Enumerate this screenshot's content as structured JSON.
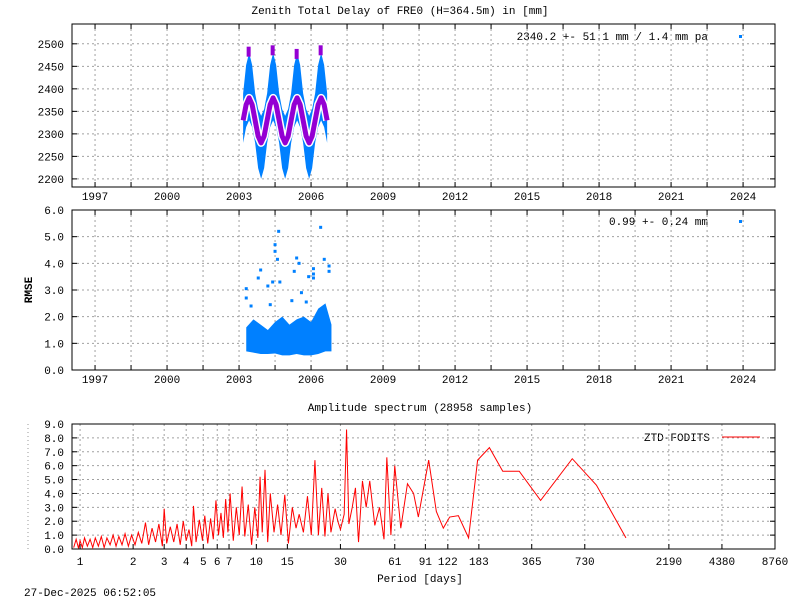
{
  "chart_data": [
    {
      "type": "scatter",
      "title": "Zenith Total Delay of FRE0 (H=364.5m) in [mm]",
      "legend": {
        "label": "2340.2 +-  51.1 mm /  1.4 mm pa",
        "placement": "top-right",
        "color": "#0080ff"
      },
      "xlim": [
        1996.04,
        2025.33
      ],
      "ylim": [
        2182,
        2544
      ],
      "xticks": [
        "1997",
        "2000",
        "2003",
        "2006",
        "2009",
        "2012",
        "2015",
        "2018",
        "2021",
        "2024"
      ],
      "yticks": [
        "2200",
        "2250",
        "2300",
        "2350",
        "2400",
        "2450",
        "2500"
      ],
      "grid": true,
      "colors": {
        "data": "#0080ff",
        "model": "#9400d3"
      },
      "data_envelope": {
        "t": [
          2003.17,
          2003.295,
          2003.42,
          2003.545,
          2003.67,
          2003.795,
          2003.92,
          2004.045,
          2004.17,
          2004.295,
          2004.42,
          2004.545,
          2004.67,
          2004.795,
          2004.92,
          2005.045,
          2005.17,
          2005.295,
          2005.42,
          2005.545,
          2005.67,
          2005.795,
          2005.92,
          2006.045,
          2006.17,
          2006.295,
          2006.42,
          2006.545,
          2006.67
        ],
        "low": [
          2280,
          2315,
          2330,
          2315,
          2280,
          2224,
          2200,
          2224,
          2280,
          2315,
          2330,
          2315,
          2280,
          2224,
          2200,
          2224,
          2280,
          2315,
          2330,
          2315,
          2280,
          2224,
          2200,
          2224,
          2280,
          2315,
          2330,
          2315,
          2280
        ],
        "high": [
          2390,
          2453,
          2480,
          2453,
          2390,
          2355,
          2340,
          2355,
          2390,
          2453,
          2480,
          2453,
          2390,
          2355,
          2340,
          2355,
          2390,
          2453,
          2480,
          2453,
          2390,
          2355,
          2340,
          2355,
          2390,
          2453,
          2480,
          2453,
          2390
        ]
      },
      "model": [
        2330,
        2365,
        2380,
        2365,
        2330,
        2295,
        2280,
        2295,
        2330,
        2365,
        2380,
        2365,
        2330,
        2295,
        2280,
        2295,
        2330,
        2365,
        2380,
        2365,
        2330,
        2295,
        2280,
        2295,
        2330,
        2365,
        2380,
        2365,
        2330
      ],
      "model_outliers": [
        [
          2003.4,
          2487
        ],
        [
          2004.4,
          2490
        ],
        [
          2005.4,
          2482
        ],
        [
          2006.4,
          2490
        ]
      ]
    },
    {
      "type": "scatter",
      "ylabel": "RMSE",
      "legend": {
        "label": "0.99 +-  0.24 mm",
        "placement": "top-right",
        "color": "#0080ff"
      },
      "xlim": [
        1996.04,
        2025.33
      ],
      "ylim": [
        0,
        6
      ],
      "xticks": [
        "1997",
        "2000",
        "2003",
        "2006",
        "2009",
        "2012",
        "2015",
        "2018",
        "2021",
        "2024"
      ],
      "yticks": [
        "0.0",
        "1.0",
        "2.0",
        "3.0",
        "4.0",
        "5.0",
        "6.0"
      ],
      "grid": true,
      "data_envelope": {
        "t": [
          2003.3,
          2003.6,
          2003.9,
          2004.2,
          2004.5,
          2004.8,
          2005.1,
          2005.4,
          2005.7,
          2006.0,
          2006.3,
          2006.6,
          2006.85
        ],
        "low": [
          0.7,
          0.65,
          0.6,
          0.6,
          0.62,
          0.55,
          0.55,
          0.6,
          0.55,
          0.55,
          0.6,
          0.7,
          0.7
        ],
        "high": [
          1.6,
          1.9,
          1.7,
          1.5,
          1.8,
          2.0,
          1.7,
          1.9,
          2.0,
          1.8,
          2.3,
          2.5,
          1.7
        ]
      },
      "outliers": [
        [
          2003.3,
          3.05
        ],
        [
          2003.3,
          2.7
        ],
        [
          2003.5,
          2.4
        ],
        [
          2003.8,
          3.45
        ],
        [
          2003.9,
          3.75
        ],
        [
          2004.2,
          3.15
        ],
        [
          2004.4,
          3.3
        ],
        [
          2004.5,
          4.7
        ],
        [
          2004.5,
          4.45
        ],
        [
          2004.6,
          4.15
        ],
        [
          2004.65,
          5.2
        ],
        [
          2004.7,
          3.3
        ],
        [
          2005.3,
          3.7
        ],
        [
          2005.4,
          4.2
        ],
        [
          2005.5,
          4.0
        ],
        [
          2005.6,
          2.9
        ],
        [
          2005.9,
          3.5
        ],
        [
          2006.1,
          3.8
        ],
        [
          2006.1,
          3.6
        ],
        [
          2006.1,
          3.45
        ],
        [
          2006.4,
          5.35
        ],
        [
          2006.55,
          4.15
        ],
        [
          2006.75,
          3.9
        ],
        [
          2006.75,
          3.7
        ],
        [
          2004.3,
          2.45
        ],
        [
          2005.2,
          2.6
        ],
        [
          2005.8,
          2.55
        ]
      ]
    },
    {
      "type": "line",
      "title": "Amplitude spectrum (28958 samples)",
      "xlabel": "Period [days]",
      "xscale": "log",
      "xlim": [
        0.9,
        8760
      ],
      "ylim": [
        0,
        9
      ],
      "xticks": [
        1,
        2,
        3,
        4,
        5,
        6,
        7,
        10,
        15,
        30,
        61,
        91,
        122,
        183,
        365,
        730,
        2190,
        4380,
        8760
      ],
      "yticks": [
        "0.0",
        "1.0",
        "2.0",
        "3.0",
        "4.0",
        "5.0",
        "6.0",
        "7.0",
        "8.0",
        "9.0"
      ],
      "grid": true,
      "series": [
        {
          "name": "ZTD-FODITS",
          "color": "#ff0000",
          "points": [
            [
              0.92,
              0.1
            ],
            [
              0.95,
              0.7
            ],
            [
              0.98,
              0.05
            ],
            [
              1.0,
              0.6
            ],
            [
              1.03,
              0.1
            ],
            [
              1.06,
              0.8
            ],
            [
              1.1,
              0.2
            ],
            [
              1.14,
              0.7
            ],
            [
              1.18,
              0.1
            ],
            [
              1.22,
              0.8
            ],
            [
              1.27,
              0.2
            ],
            [
              1.32,
              0.9
            ],
            [
              1.37,
              0.1
            ],
            [
              1.42,
              0.8
            ],
            [
              1.48,
              0.3
            ],
            [
              1.54,
              1.0
            ],
            [
              1.6,
              0.2
            ],
            [
              1.66,
              0.9
            ],
            [
              1.73,
              0.3
            ],
            [
              1.8,
              1.1
            ],
            [
              1.88,
              0.2
            ],
            [
              1.96,
              1.0
            ],
            [
              2.05,
              0.3
            ],
            [
              2.14,
              1.2
            ],
            [
              2.24,
              0.4
            ],
            [
              2.35,
              1.9
            ],
            [
              2.45,
              0.3
            ],
            [
              2.56,
              1.5
            ],
            [
              2.68,
              0.5
            ],
            [
              2.8,
              1.8
            ],
            [
              2.93,
              0.2
            ],
            [
              3.0,
              2.9
            ],
            [
              3.1,
              0.4
            ],
            [
              3.25,
              1.6
            ],
            [
              3.4,
              0.5
            ],
            [
              3.55,
              1.8
            ],
            [
              3.7,
              0.3
            ],
            [
              3.85,
              2.0
            ],
            [
              4.0,
              0.6
            ],
            [
              4.15,
              1.4
            ],
            [
              4.3,
              0.2
            ],
            [
              4.4,
              3.1
            ],
            [
              4.55,
              0.5
            ],
            [
              4.75,
              2.1
            ],
            [
              4.95,
              0.6
            ],
            [
              5.1,
              2.4
            ],
            [
              5.3,
              0.4
            ],
            [
              5.5,
              2.2
            ],
            [
              5.7,
              0.7
            ],
            [
              5.9,
              3.5
            ],
            [
              6.1,
              1.0
            ],
            [
              6.3,
              2.6
            ],
            [
              6.5,
              0.8
            ],
            [
              6.7,
              3.6
            ],
            [
              6.9,
              1.2
            ],
            [
              7.1,
              4.0
            ],
            [
              7.4,
              0.6
            ],
            [
              7.7,
              3.0
            ],
            [
              8.0,
              1.0
            ],
            [
              8.3,
              4.5
            ],
            [
              8.6,
              0.9
            ],
            [
              9.0,
              3.2
            ],
            [
              9.4,
              0.3
            ],
            [
              9.8,
              3.0
            ],
            [
              10.2,
              0.8
            ],
            [
              10.5,
              5.2
            ],
            [
              10.8,
              1.2
            ],
            [
              11.2,
              5.7
            ],
            [
              11.6,
              0.5
            ],
            [
              12.0,
              4.0
            ],
            [
              12.6,
              1.2
            ],
            [
              13.2,
              3.2
            ],
            [
              13.8,
              1.0
            ],
            [
              14.5,
              3.9
            ],
            [
              15.2,
              0.4
            ],
            [
              16.0,
              3.0
            ],
            [
              16.8,
              1.5
            ],
            [
              17.5,
              2.5
            ],
            [
              18.5,
              1.2
            ],
            [
              19.5,
              3.8
            ],
            [
              20.5,
              1.0
            ],
            [
              21.5,
              6.4
            ],
            [
              22.5,
              1.0
            ],
            [
              23.5,
              4.4
            ],
            [
              24.5,
              0.9
            ],
            [
              25.5,
              4.0
            ],
            [
              26.5,
              1.2
            ],
            [
              28.0,
              2.9
            ],
            [
              29.0,
              2.0
            ],
            [
              30.0,
              1.4
            ],
            [
              31.5,
              2.5
            ],
            [
              32.5,
              8.6
            ],
            [
              33.5,
              1.8
            ],
            [
              35.0,
              3.0
            ],
            [
              36.5,
              4.4
            ],
            [
              38.0,
              0.5
            ],
            [
              40.0,
              4.9
            ],
            [
              42.0,
              3.0
            ],
            [
              44.0,
              4.9
            ],
            [
              47.0,
              1.7
            ],
            [
              50.0,
              3.0
            ],
            [
              53.0,
              0.7
            ],
            [
              55.0,
              6.6
            ],
            [
              58.0,
              1.0
            ],
            [
              61.0,
              6.0
            ],
            [
              66.0,
              1.5
            ],
            [
              72.0,
              4.7
            ],
            [
              78.0,
              4.0
            ],
            [
              83.0,
              2.3
            ],
            [
              95.0,
              6.4
            ],
            [
              105.0,
              2.7
            ],
            [
              115.0,
              1.5
            ],
            [
              125.0,
              2.3
            ],
            [
              140.0,
              2.4
            ],
            [
              160.0,
              0.8
            ],
            [
              180.0,
              6.4
            ],
            [
              210.0,
              7.3
            ],
            [
              250.0,
              5.6
            ],
            [
              310.0,
              5.6
            ],
            [
              410.0,
              3.5
            ],
            [
              620.0,
              6.5
            ],
            [
              850.0,
              4.6
            ],
            [
              1250.0,
              0.8
            ]
          ]
        }
      ],
      "legend_placement": "top-right"
    }
  ],
  "timestamp": "27-Dec-2025 06:52:05"
}
